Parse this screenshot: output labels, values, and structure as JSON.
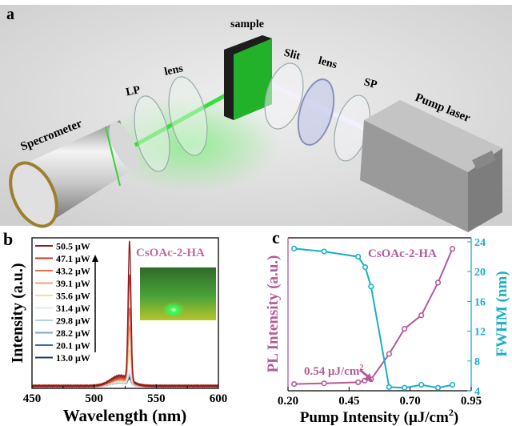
{
  "panel_a": {
    "panel_label": "a",
    "labels": {
      "sample": "sample",
      "lp": "LP",
      "lens1": "lens",
      "slit": "Slit",
      "lens2": "lens",
      "sp": "SP",
      "spectrometer": "Specrometer",
      "pump_laser": "Pump laser"
    }
  },
  "chart_data": [
    {
      "panel_label": "b",
      "type": "line",
      "title": "CsOAc-2-HA",
      "xlabel": "Wavelength (nm)",
      "ylabel": "Intensity (a.u.)",
      "xlim": [
        450,
        600
      ],
      "xticks": [
        "450",
        "500",
        "550",
        "600"
      ],
      "peak_wavelength_nm": 528.5,
      "legend_placement": "top-left",
      "series": [
        {
          "name": "50.5 μW",
          "color": "#8e1c1c",
          "peak": 1.0
        },
        {
          "name": "47.1 μW",
          "color": "#c0392b",
          "peak": 0.76
        },
        {
          "name": "43.2 μW",
          "color": "#e07050",
          "peak": 0.53
        },
        {
          "name": "39.1 μW",
          "color": "#f3a273",
          "peak": 0.4
        },
        {
          "name": "35.6 μW",
          "color": "#f2dea6",
          "peak": 0.24
        },
        {
          "name": "31.4 μW",
          "color": "#dfeaf0",
          "peak": 0.09
        },
        {
          "name": "29.8 μW",
          "color": "#b6d0e6",
          "peak": 0.07
        },
        {
          "name": "28.2 μW",
          "color": "#7ea7d0",
          "peak": 0.06
        },
        {
          "name": "20.1 μW",
          "color": "#3f6aa3",
          "peak": 0.05
        },
        {
          "name": "13.0 μW",
          "color": "#1f3a6a",
          "peak": 0.04
        }
      ]
    },
    {
      "panel_label": "c",
      "type": "line",
      "title": "CsOAc-2-HA",
      "xlabel": "Pump Intensity (μJ/cm²)",
      "xlabel_main": "Pump Intensity (μJ/cm",
      "xlabel_sup": "2",
      "xlabel_end": ")",
      "ylabel_left": "PL Intensity (a.u.)",
      "ylabel_right": "FWHM (nm)",
      "xlim": [
        0.2,
        0.95
      ],
      "xticks": [
        "0.20",
        "0.45",
        "0.70",
        "0.95"
      ],
      "ylim_left": [
        0,
        100
      ],
      "ylim_right": [
        4,
        24
      ],
      "yticks_right": [
        "4",
        "8",
        "12",
        "16",
        "20",
        "24"
      ],
      "annotation": {
        "text": "0.54 μJ/cm",
        "sup": "2",
        "x": 0.54
      },
      "series": [
        {
          "name": "PL Intensity",
          "axis": "left",
          "color": "#b55a98",
          "x": [
            0.225,
            0.348,
            0.487,
            0.514,
            0.54,
            0.614,
            0.677,
            0.746,
            0.814,
            0.873
          ],
          "y": [
            4.5,
            5.0,
            5.7,
            6.8,
            7.7,
            24.7,
            41.6,
            50.7,
            72.6,
            95.3
          ]
        },
        {
          "name": "FWHM",
          "axis": "right",
          "color": "#1aaec8",
          "x": [
            0.225,
            0.348,
            0.487,
            0.516,
            0.54,
            0.614,
            0.677,
            0.746,
            0.814,
            0.873
          ],
          "y": [
            23.1,
            22.7,
            22.0,
            20.6,
            18.0,
            4.5,
            4.4,
            4.8,
            4.4,
            4.8
          ]
        }
      ]
    }
  ]
}
